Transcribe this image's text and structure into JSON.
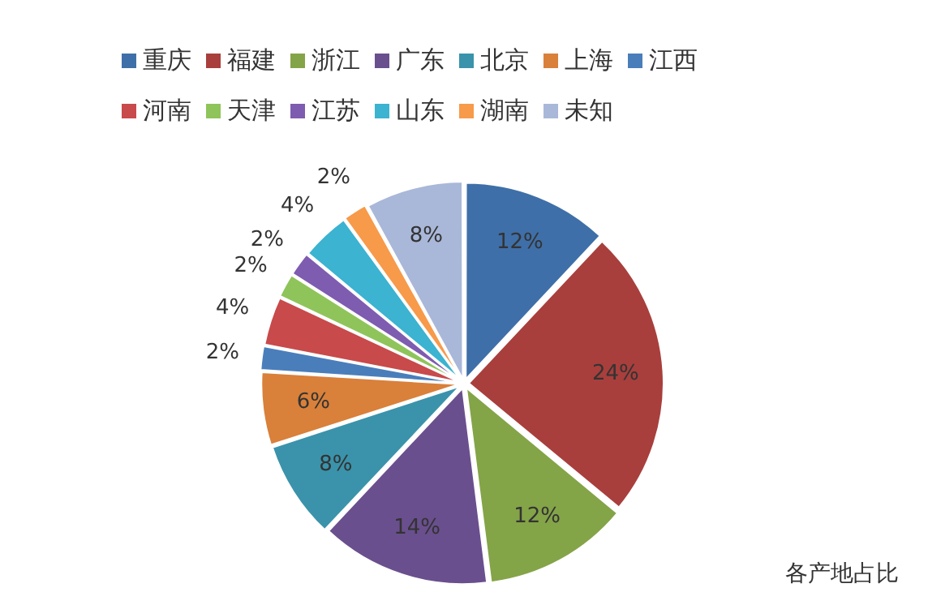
{
  "chart_data": {
    "type": "pie",
    "categories": [
      "重庆",
      "福建",
      "浙江",
      "广东",
      "北京",
      "上海",
      "江西",
      "河南",
      "天津",
      "江苏",
      "山东",
      "湖南",
      "未知"
    ],
    "values": [
      12,
      24,
      12,
      14,
      8,
      6,
      2,
      4,
      2,
      2,
      4,
      2,
      8
    ],
    "value_labels": [
      "12%",
      "24%",
      "12%",
      "14%",
      "8%",
      "6%",
      "2%",
      "4%",
      "2%",
      "2%",
      "4%",
      "2%",
      "8%"
    ],
    "colors": [
      "#3f6fa8",
      "#a83f3c",
      "#84a448",
      "#6a4f8e",
      "#3a93ab",
      "#d9803a",
      "#4a7ebb",
      "#c84a4a",
      "#8fc45a",
      "#7e5cb0",
      "#3bb3d1",
      "#f79a4a",
      "#a9b8d9"
    ],
    "legend": "top",
    "annotations": [
      "各产地占比"
    ]
  }
}
